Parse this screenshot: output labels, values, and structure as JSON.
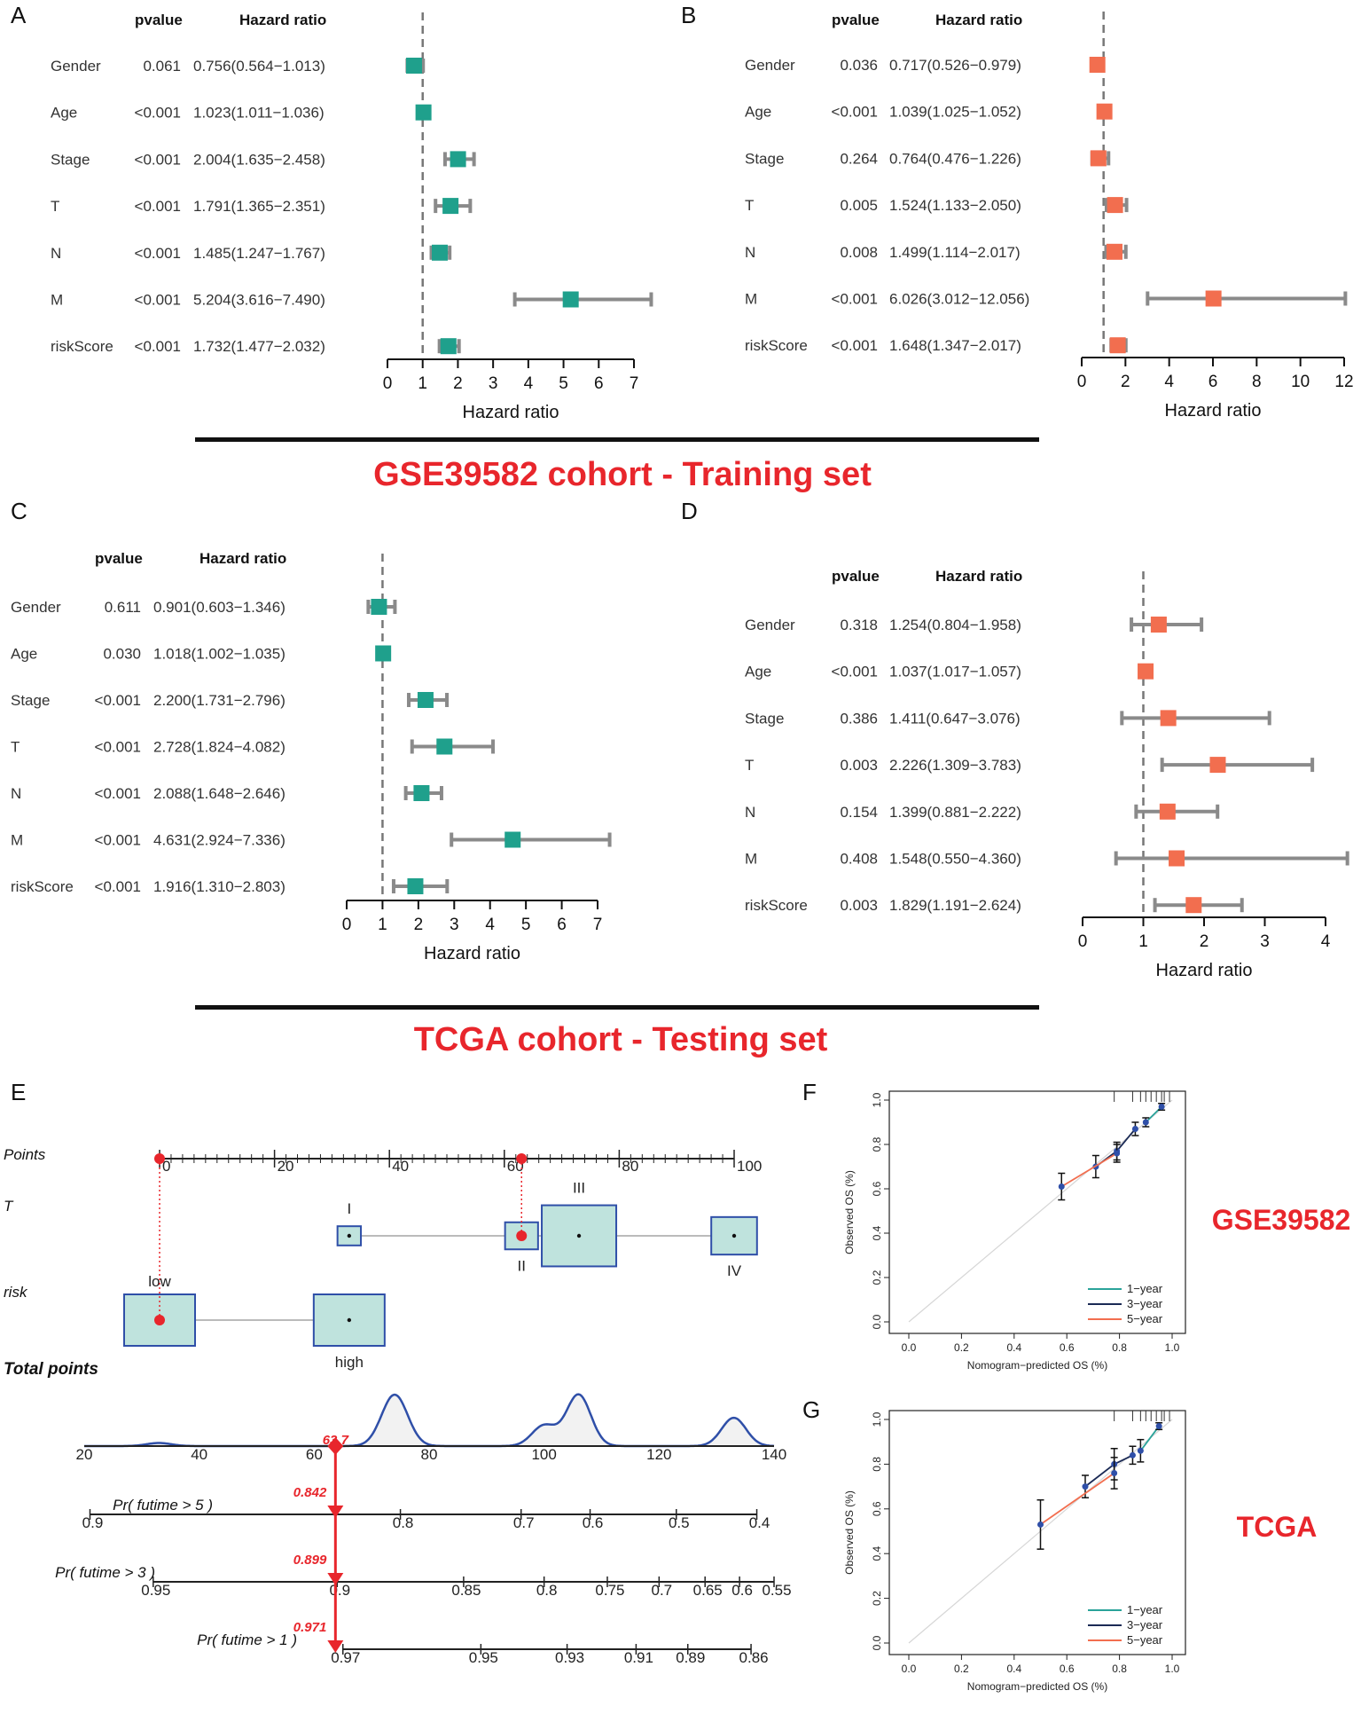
{
  "colors": {
    "teal": "#1fa08c",
    "orange": "#f26e4f",
    "whisker": "#8a8a8a",
    "red_title": "#e8262c",
    "nomo_blue": "#2f4fa8",
    "nomo_box_fill": "#bfe3dd",
    "nomo_red": "#e8262c",
    "cal_teal": "#2aa39a",
    "cal_navy": "#1b2a55",
    "cal_red": "#f26e4f"
  },
  "cohort_titles": {
    "training": "GSE39582 cohort - Training set",
    "testing": "TCGA cohort - Testing set"
  },
  "chart_data": [
    {
      "panel": "A",
      "type": "forest",
      "header_pvalue": "pvalue",
      "header_hr": "Hazard ratio",
      "xlabel": "Hazard ratio",
      "xlim": [
        0,
        7
      ],
      "xticks": [
        "0",
        "1",
        "2",
        "3",
        "4",
        "5",
        "6",
        "7"
      ],
      "ref_line": 1,
      "color": "teal",
      "rows": [
        {
          "label": "Gender",
          "pvalue": "0.061",
          "hr_text": "0.756(0.564−1.013)",
          "hr": 0.756,
          "lo": 0.564,
          "hi": 1.013
        },
        {
          "label": "Age",
          "pvalue": "<0.001",
          "hr_text": "1.023(1.011−1.036)",
          "hr": 1.023,
          "lo": 1.011,
          "hi": 1.036
        },
        {
          "label": "Stage",
          "pvalue": "<0.001",
          "hr_text": "2.004(1.635−2.458)",
          "hr": 2.004,
          "lo": 1.635,
          "hi": 2.458
        },
        {
          "label": "T",
          "pvalue": "<0.001",
          "hr_text": "1.791(1.365−2.351)",
          "hr": 1.791,
          "lo": 1.365,
          "hi": 2.351
        },
        {
          "label": "N",
          "pvalue": "<0.001",
          "hr_text": "1.485(1.247−1.767)",
          "hr": 1.485,
          "lo": 1.247,
          "hi": 1.767
        },
        {
          "label": "M",
          "pvalue": "<0.001",
          "hr_text": "5.204(3.616−7.490)",
          "hr": 5.204,
          "lo": 3.616,
          "hi": 7.49
        },
        {
          "label": "riskScore",
          "pvalue": "<0.001",
          "hr_text": "1.732(1.477−2.032)",
          "hr": 1.732,
          "lo": 1.477,
          "hi": 2.032
        }
      ]
    },
    {
      "panel": "B",
      "type": "forest",
      "header_pvalue": "pvalue",
      "header_hr": "Hazard ratio",
      "xlabel": "Hazard ratio",
      "xlim": [
        0,
        12
      ],
      "xticks": [
        "0",
        "2",
        "4",
        "6",
        "8",
        "10",
        "12"
      ],
      "ref_line": 1,
      "color": "orange",
      "rows": [
        {
          "label": "Gender",
          "pvalue": "0.036",
          "hr_text": "0.717(0.526−0.979)",
          "hr": 0.717,
          "lo": 0.526,
          "hi": 0.979
        },
        {
          "label": "Age",
          "pvalue": "<0.001",
          "hr_text": "1.039(1.025−1.052)",
          "hr": 1.039,
          "lo": 1.025,
          "hi": 1.052
        },
        {
          "label": "Stage",
          "pvalue": "0.264",
          "hr_text": "0.764(0.476−1.226)",
          "hr": 0.764,
          "lo": 0.476,
          "hi": 1.226
        },
        {
          "label": "T",
          "pvalue": "0.005",
          "hr_text": "1.524(1.133−2.050)",
          "hr": 1.524,
          "lo": 1.133,
          "hi": 2.05
        },
        {
          "label": "N",
          "pvalue": "0.008",
          "hr_text": "1.499(1.114−2.017)",
          "hr": 1.499,
          "lo": 1.114,
          "hi": 2.017
        },
        {
          "label": "M",
          "pvalue": "<0.001",
          "hr_text": "6.026(3.012−12.056)",
          "hr": 6.026,
          "lo": 3.012,
          "hi": 12.056
        },
        {
          "label": "riskScore",
          "pvalue": "<0.001",
          "hr_text": "1.648(1.347−2.017)",
          "hr": 1.648,
          "lo": 1.347,
          "hi": 2.017
        }
      ]
    },
    {
      "panel": "C",
      "type": "forest",
      "header_pvalue": "pvalue",
      "header_hr": "Hazard ratio",
      "xlabel": "Hazard ratio",
      "xlim": [
        0,
        7
      ],
      "xticks": [
        "0",
        "1",
        "2",
        "3",
        "4",
        "5",
        "6",
        "7"
      ],
      "ref_line": 1,
      "color": "teal",
      "rows": [
        {
          "label": "Gender",
          "pvalue": "0.611",
          "hr_text": "0.901(0.603−1.346)",
          "hr": 0.901,
          "lo": 0.603,
          "hi": 1.346
        },
        {
          "label": "Age",
          "pvalue": "0.030",
          "hr_text": "1.018(1.002−1.035)",
          "hr": 1.018,
          "lo": 1.002,
          "hi": 1.035
        },
        {
          "label": "Stage",
          "pvalue": "<0.001",
          "hr_text": "2.200(1.731−2.796)",
          "hr": 2.2,
          "lo": 1.731,
          "hi": 2.796
        },
        {
          "label": "T",
          "pvalue": "<0.001",
          "hr_text": "2.728(1.824−4.082)",
          "hr": 2.728,
          "lo": 1.824,
          "hi": 4.082
        },
        {
          "label": "N",
          "pvalue": "<0.001",
          "hr_text": "2.088(1.648−2.646)",
          "hr": 2.088,
          "lo": 1.648,
          "hi": 2.646
        },
        {
          "label": "M",
          "pvalue": "<0.001",
          "hr_text": "4.631(2.924−7.336)",
          "hr": 4.631,
          "lo": 2.924,
          "hi": 7.336
        },
        {
          "label": "riskScore",
          "pvalue": "<0.001",
          "hr_text": "1.916(1.310−2.803)",
          "hr": 1.916,
          "lo": 1.31,
          "hi": 2.803
        }
      ]
    },
    {
      "panel": "D",
      "type": "forest",
      "header_pvalue": "pvalue",
      "header_hr": "Hazard ratio",
      "xlabel": "Hazard ratio",
      "xlim": [
        0,
        4
      ],
      "xticks": [
        "0",
        "1",
        "2",
        "3",
        "4"
      ],
      "ref_line": 1,
      "color": "orange",
      "rows": [
        {
          "label": "Gender",
          "pvalue": "0.318",
          "hr_text": "1.254(0.804−1.958)",
          "hr": 1.254,
          "lo": 0.804,
          "hi": 1.958
        },
        {
          "label": "Age",
          "pvalue": "<0.001",
          "hr_text": "1.037(1.017−1.057)",
          "hr": 1.037,
          "lo": 1.017,
          "hi": 1.057
        },
        {
          "label": "Stage",
          "pvalue": "0.386",
          "hr_text": "1.411(0.647−3.076)",
          "hr": 1.411,
          "lo": 0.647,
          "hi": 3.076
        },
        {
          "label": "T",
          "pvalue": "0.003",
          "hr_text": "2.226(1.309−3.783)",
          "hr": 2.226,
          "lo": 1.309,
          "hi": 3.783
        },
        {
          "label": "N",
          "pvalue": "0.154",
          "hr_text": "1.399(0.881−2.222)",
          "hr": 1.399,
          "lo": 0.881,
          "hi": 2.222
        },
        {
          "label": "M",
          "pvalue": "0.408",
          "hr_text": "1.548(0.550−4.360)",
          "hr": 1.548,
          "lo": 0.55,
          "hi": 4.36
        },
        {
          "label": "riskScore",
          "pvalue": "0.003",
          "hr_text": "1.829(1.191−2.624)",
          "hr": 1.829,
          "lo": 1.191,
          "hi": 2.624
        }
      ]
    },
    {
      "panel": "E",
      "type": "nomogram",
      "points_label": "Points",
      "points_range": [
        0,
        100
      ],
      "points_ticks": [
        "0",
        "20",
        "40",
        "60",
        "80",
        "100"
      ],
      "variables": [
        {
          "label": "T",
          "levels": [
            {
              "name": "I",
              "points": 33,
              "weight": 0.2
            },
            {
              "name": "II",
              "points": 63,
              "weight": 0.35
            },
            {
              "name": "III",
              "points": 73,
              "weight": 1.0
            },
            {
              "name": "IV",
              "points": 100,
              "weight": 0.55
            }
          ]
        },
        {
          "label": "risk",
          "levels": [
            {
              "name": "low",
              "points": 0,
              "weight": 1.0
            },
            {
              "name": "high",
              "points": 33,
              "weight": 1.0
            }
          ]
        }
      ],
      "total_points_label": "Total points",
      "total_range": [
        20,
        140
      ],
      "total_ticks": [
        "20",
        "40",
        "60",
        "80",
        "100",
        "120",
        "140"
      ],
      "selected_total": 63.7,
      "selected_total_label": "63.7",
      "density_peaks": [
        {
          "center": 33,
          "height": 0.06,
          "width": 3
        },
        {
          "center": 74,
          "height": 1.0,
          "width": 3.2
        },
        {
          "center": 100,
          "height": 0.4,
          "width": 3
        },
        {
          "center": 106,
          "height": 1.0,
          "width": 3
        },
        {
          "center": 133,
          "height": 0.55,
          "width": 3
        }
      ],
      "probability_scales": [
        {
          "label": "Pr( futime > 5 )",
          "value_label": "0.842",
          "ticks": [
            {
              "label": "0.9",
              "total": 21
            },
            {
              "label": "0.8",
              "total": 75
            },
            {
              "label": "0.7",
              "total": 96
            },
            {
              "label": "0.6",
              "total": 108
            },
            {
              "label": "0.5",
              "total": 123
            },
            {
              "label": "0.4",
              "total": 137
            }
          ]
        },
        {
          "label": "Pr( futime > 3 )",
          "value_label": "0.899",
          "ticks": [
            {
              "label": "0.95",
              "total": 32
            },
            {
              "label": "0.9",
              "total": 64
            },
            {
              "label": "0.85",
              "total": 86
            },
            {
              "label": "0.8",
              "total": 100
            },
            {
              "label": "0.75",
              "total": 111
            },
            {
              "label": "0.7",
              "total": 120
            },
            {
              "label": "0.65",
              "total": 128
            },
            {
              "label": "0.6",
              "total": 134
            },
            {
              "label": "0.55",
              "total": 140
            }
          ]
        },
        {
          "label": "Pr( futime > 1 )",
          "value_label": "0.971",
          "ticks": [
            {
              "label": "0.97",
              "total": 65
            },
            {
              "label": "0.95",
              "total": 89
            },
            {
              "label": "0.93",
              "total": 104
            },
            {
              "label": "0.91",
              "total": 116
            },
            {
              "label": "0.89",
              "total": 125
            },
            {
              "label": "0.86",
              "total": 136
            }
          ]
        }
      ]
    },
    {
      "panel": "F",
      "type": "calibration",
      "side_label": "GSE39582",
      "xlabel": "Nomogram−predicted OS (%)",
      "ylabel": "Observed OS (%)",
      "xlim": [
        0,
        1
      ],
      "ylim": [
        0,
        1
      ],
      "ticks": [
        "0.0",
        "0.2",
        "0.4",
        "0.6",
        "0.8",
        "1.0"
      ],
      "legend": [
        "1−year",
        "3−year",
        "5−year"
      ],
      "series": [
        {
          "name": "1-year",
          "color": "cal_teal",
          "points": [
            [
              0.9,
              0.9
            ],
            [
              0.96,
              0.97
            ]
          ],
          "err": [
            0.02,
            0.015
          ]
        },
        {
          "name": "3-year",
          "color": "cal_navy",
          "points": [
            [
              0.71,
              0.7
            ],
            [
              0.79,
              0.77
            ],
            [
              0.86,
              0.87
            ]
          ],
          "err": [
            0.05,
            0.04,
            0.03
          ]
        },
        {
          "name": "5-year",
          "color": "cal_red",
          "points": [
            [
              0.58,
              0.61
            ],
            [
              0.79,
              0.76
            ]
          ],
          "err": [
            0.06,
            0.04
          ]
        }
      ]
    },
    {
      "panel": "G",
      "type": "calibration",
      "side_label": "TCGA",
      "xlabel": "Nomogram−predicted OS (%)",
      "ylabel": "Observed OS (%)",
      "xlim": [
        0,
        1
      ],
      "ylim": [
        0,
        1
      ],
      "ticks": [
        "0.0",
        "0.2",
        "0.4",
        "0.6",
        "0.8",
        "1.0"
      ],
      "legend": [
        "1−year",
        "3−year",
        "5−year"
      ],
      "series": [
        {
          "name": "1-year",
          "color": "cal_teal",
          "points": [
            [
              0.88,
              0.86
            ],
            [
              0.95,
              0.97
            ]
          ],
          "err": [
            0.05,
            0.015
          ]
        },
        {
          "name": "3-year",
          "color": "cal_navy",
          "points": [
            [
              0.67,
              0.7
            ],
            [
              0.78,
              0.8
            ],
            [
              0.85,
              0.84
            ]
          ],
          "err": [
            0.05,
            0.07,
            0.04
          ]
        },
        {
          "name": "5-year",
          "color": "cal_red",
          "points": [
            [
              0.5,
              0.53
            ],
            [
              0.78,
              0.76
            ]
          ],
          "err": [
            0.11,
            0.07
          ]
        }
      ]
    }
  ]
}
